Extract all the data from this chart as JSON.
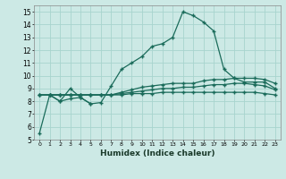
{
  "xlabel": "Humidex (Indice chaleur)",
  "xlim": [
    -0.5,
    23.5
  ],
  "ylim": [
    5,
    15.5
  ],
  "yticks": [
    5,
    6,
    7,
    8,
    9,
    10,
    11,
    12,
    13,
    14,
    15
  ],
  "xticks": [
    0,
    1,
    2,
    3,
    4,
    5,
    6,
    7,
    8,
    9,
    10,
    11,
    12,
    13,
    14,
    15,
    16,
    17,
    18,
    19,
    20,
    21,
    22,
    23
  ],
  "background_color": "#cce9e5",
  "grid_color": "#a8d4ce",
  "line_color": "#1a6b5a",
  "series": [
    [
      5.5,
      8.5,
      8.0,
      8.2,
      8.3,
      7.8,
      7.9,
      9.2,
      10.5,
      11.0,
      11.5,
      12.3,
      12.5,
      13.0,
      15.0,
      14.7,
      14.2,
      13.5,
      10.5,
      9.8,
      9.5,
      9.5,
      9.5,
      9.0
    ],
    [
      null,
      8.5,
      8.0,
      9.0,
      8.3,
      7.8,
      null,
      null,
      null,
      null,
      null,
      null,
      null,
      null,
      null,
      null,
      null,
      null,
      null,
      null,
      null,
      null,
      null,
      null
    ],
    [
      8.5,
      8.5,
      8.5,
      8.5,
      8.5,
      8.5,
      8.5,
      8.5,
      8.7,
      8.9,
      9.1,
      9.2,
      9.3,
      9.4,
      9.4,
      9.4,
      9.6,
      9.7,
      9.7,
      9.8,
      9.8,
      9.8,
      9.7,
      9.4
    ],
    [
      8.5,
      8.5,
      8.5,
      8.5,
      8.5,
      8.5,
      8.5,
      8.5,
      8.6,
      8.7,
      8.8,
      8.9,
      9.0,
      9.0,
      9.1,
      9.1,
      9.2,
      9.3,
      9.3,
      9.4,
      9.4,
      9.3,
      9.2,
      8.9
    ],
    [
      8.5,
      8.5,
      8.5,
      8.5,
      8.5,
      8.5,
      8.5,
      8.5,
      8.5,
      8.6,
      8.6,
      8.6,
      8.7,
      8.7,
      8.7,
      8.7,
      8.7,
      8.7,
      8.7,
      8.7,
      8.7,
      8.7,
      8.6,
      8.5
    ]
  ]
}
